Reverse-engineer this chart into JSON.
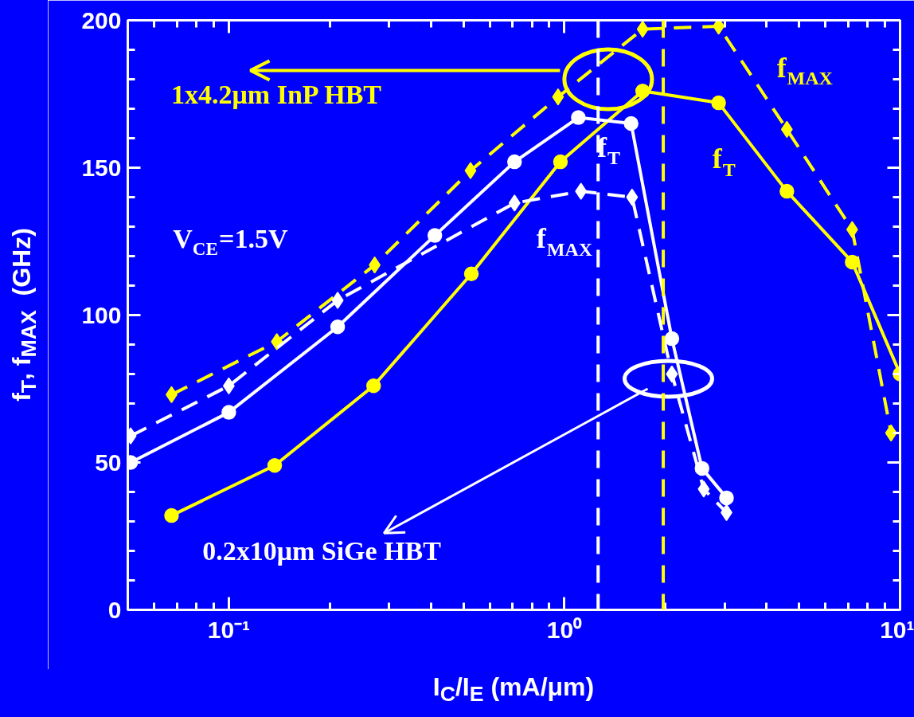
{
  "chart_data": {
    "type": "line",
    "xlabel": "I$_{C}$/I$_{E}$ (mA/μm)",
    "ylabel": "f$_{T}$, f$_{MAX}$  (GHz)",
    "log": "x",
    "xlim": [
      0.05,
      10
    ],
    "ylim": [
      0,
      200
    ],
    "xticks": [
      {
        "value": 0.05,
        "label": null
      },
      {
        "value": 0.06,
        "label": null
      },
      {
        "value": 0.07,
        "label": null
      },
      {
        "value": 0.08,
        "label": null
      },
      {
        "value": 0.09,
        "label": null
      },
      {
        "value": 0.1,
        "label": "10⁻¹"
      },
      {
        "value": 0.2,
        "label": null
      },
      {
        "value": 0.3,
        "label": null
      },
      {
        "value": 0.4,
        "label": null
      },
      {
        "value": 0.5,
        "label": null
      },
      {
        "value": 0.6,
        "label": null
      },
      {
        "value": 0.7,
        "label": null
      },
      {
        "value": 0.8,
        "label": null
      },
      {
        "value": 0.9,
        "label": null
      },
      {
        "value": 1,
        "label": "10⁰"
      },
      {
        "value": 2,
        "label": null
      },
      {
        "value": 3,
        "label": null
      },
      {
        "value": 4,
        "label": null
      },
      {
        "value": 5,
        "label": null
      },
      {
        "value": 6,
        "label": null
      },
      {
        "value": 7,
        "label": null
      },
      {
        "value": 8,
        "label": null
      },
      {
        "value": 9,
        "label": null
      },
      {
        "value": 10,
        "label": "10¹"
      }
    ],
    "yticks": [
      0,
      {
        "value": 10,
        "label": null
      },
      {
        "value": 20,
        "label": null
      },
      {
        "value": 30,
        "label": null
      },
      {
        "value": 40,
        "label": null
      },
      50,
      {
        "value": 60,
        "label": null
      },
      {
        "value": 70,
        "label": null
      },
      {
        "value": 80,
        "label": null
      },
      {
        "value": 90,
        "label": null
      },
      100,
      {
        "value": 110,
        "label": null
      },
      {
        "value": 120,
        "label": null
      },
      {
        "value": 130,
        "label": null
      },
      {
        "value": 140,
        "label": null
      },
      150,
      {
        "value": 160,
        "label": null
      },
      {
        "value": 170,
        "label": null
      },
      {
        "value": 180,
        "label": null
      },
      {
        "value": 190,
        "label": null
      },
      200
    ],
    "grid": false,
    "series": [
      {
        "color": "#ffff00",
        "marker": "circle",
        "line_style": "solid",
        "x": [
          0.0675,
          0.137,
          0.27,
          0.528,
          0.973,
          1.71,
          2.88,
          4.6,
          7.2,
          10
        ],
        "values": [
          32,
          49,
          76,
          114,
          152,
          176,
          172,
          142,
          118,
          80
        ]
      },
      {
        "color": "#ffff00",
        "marker": "diamond",
        "line_style": "dashed",
        "x": [
          0.0675,
          0.139,
          0.272,
          0.525,
          0.957,
          1.71,
          2.88,
          4.6,
          7.2,
          9.4
        ],
        "values": [
          73,
          91,
          117,
          149,
          174,
          197,
          198,
          163,
          129,
          60
        ]
      },
      {
        "color": "#ffffff",
        "marker": "circle",
        "line_style": "solid",
        "x": [
          0.051,
          0.1,
          0.211,
          0.411,
          0.71,
          1.1,
          1.58,
          2.09,
          2.57,
          3.04
        ],
        "values": [
          50,
          67,
          96,
          127,
          152,
          167,
          165,
          92,
          48,
          38
        ]
      },
      {
        "color": "#ffffff",
        "marker": "diamond",
        "line_style": "dashed",
        "x": [
          0.051,
          0.1,
          0.211,
          0.71,
          1.12,
          1.59,
          2.09,
          2.6,
          3.04
        ],
        "values": [
          59,
          76,
          105,
          138,
          142,
          140,
          80,
          41,
          33
        ]
      }
    ],
    "ref_lines": [
      {
        "axis": "x",
        "value": 1.26,
        "label": null,
        "color": "#ffffff",
        "line_style": "dashed"
      },
      {
        "axis": "x",
        "value": 1.97,
        "label": null,
        "color": "#ffff00",
        "line_style": "dashed"
      }
    ],
    "annotations": [
      "1x4.2μm InP HBT",
      "V$_{CE}$=1.5V",
      "0.2x10μm SiGe HBT",
      "f$_{T}$",
      "f$_{MAX}$",
      "f$_{T}$",
      "f$_{MAX}$"
    ]
  }
}
